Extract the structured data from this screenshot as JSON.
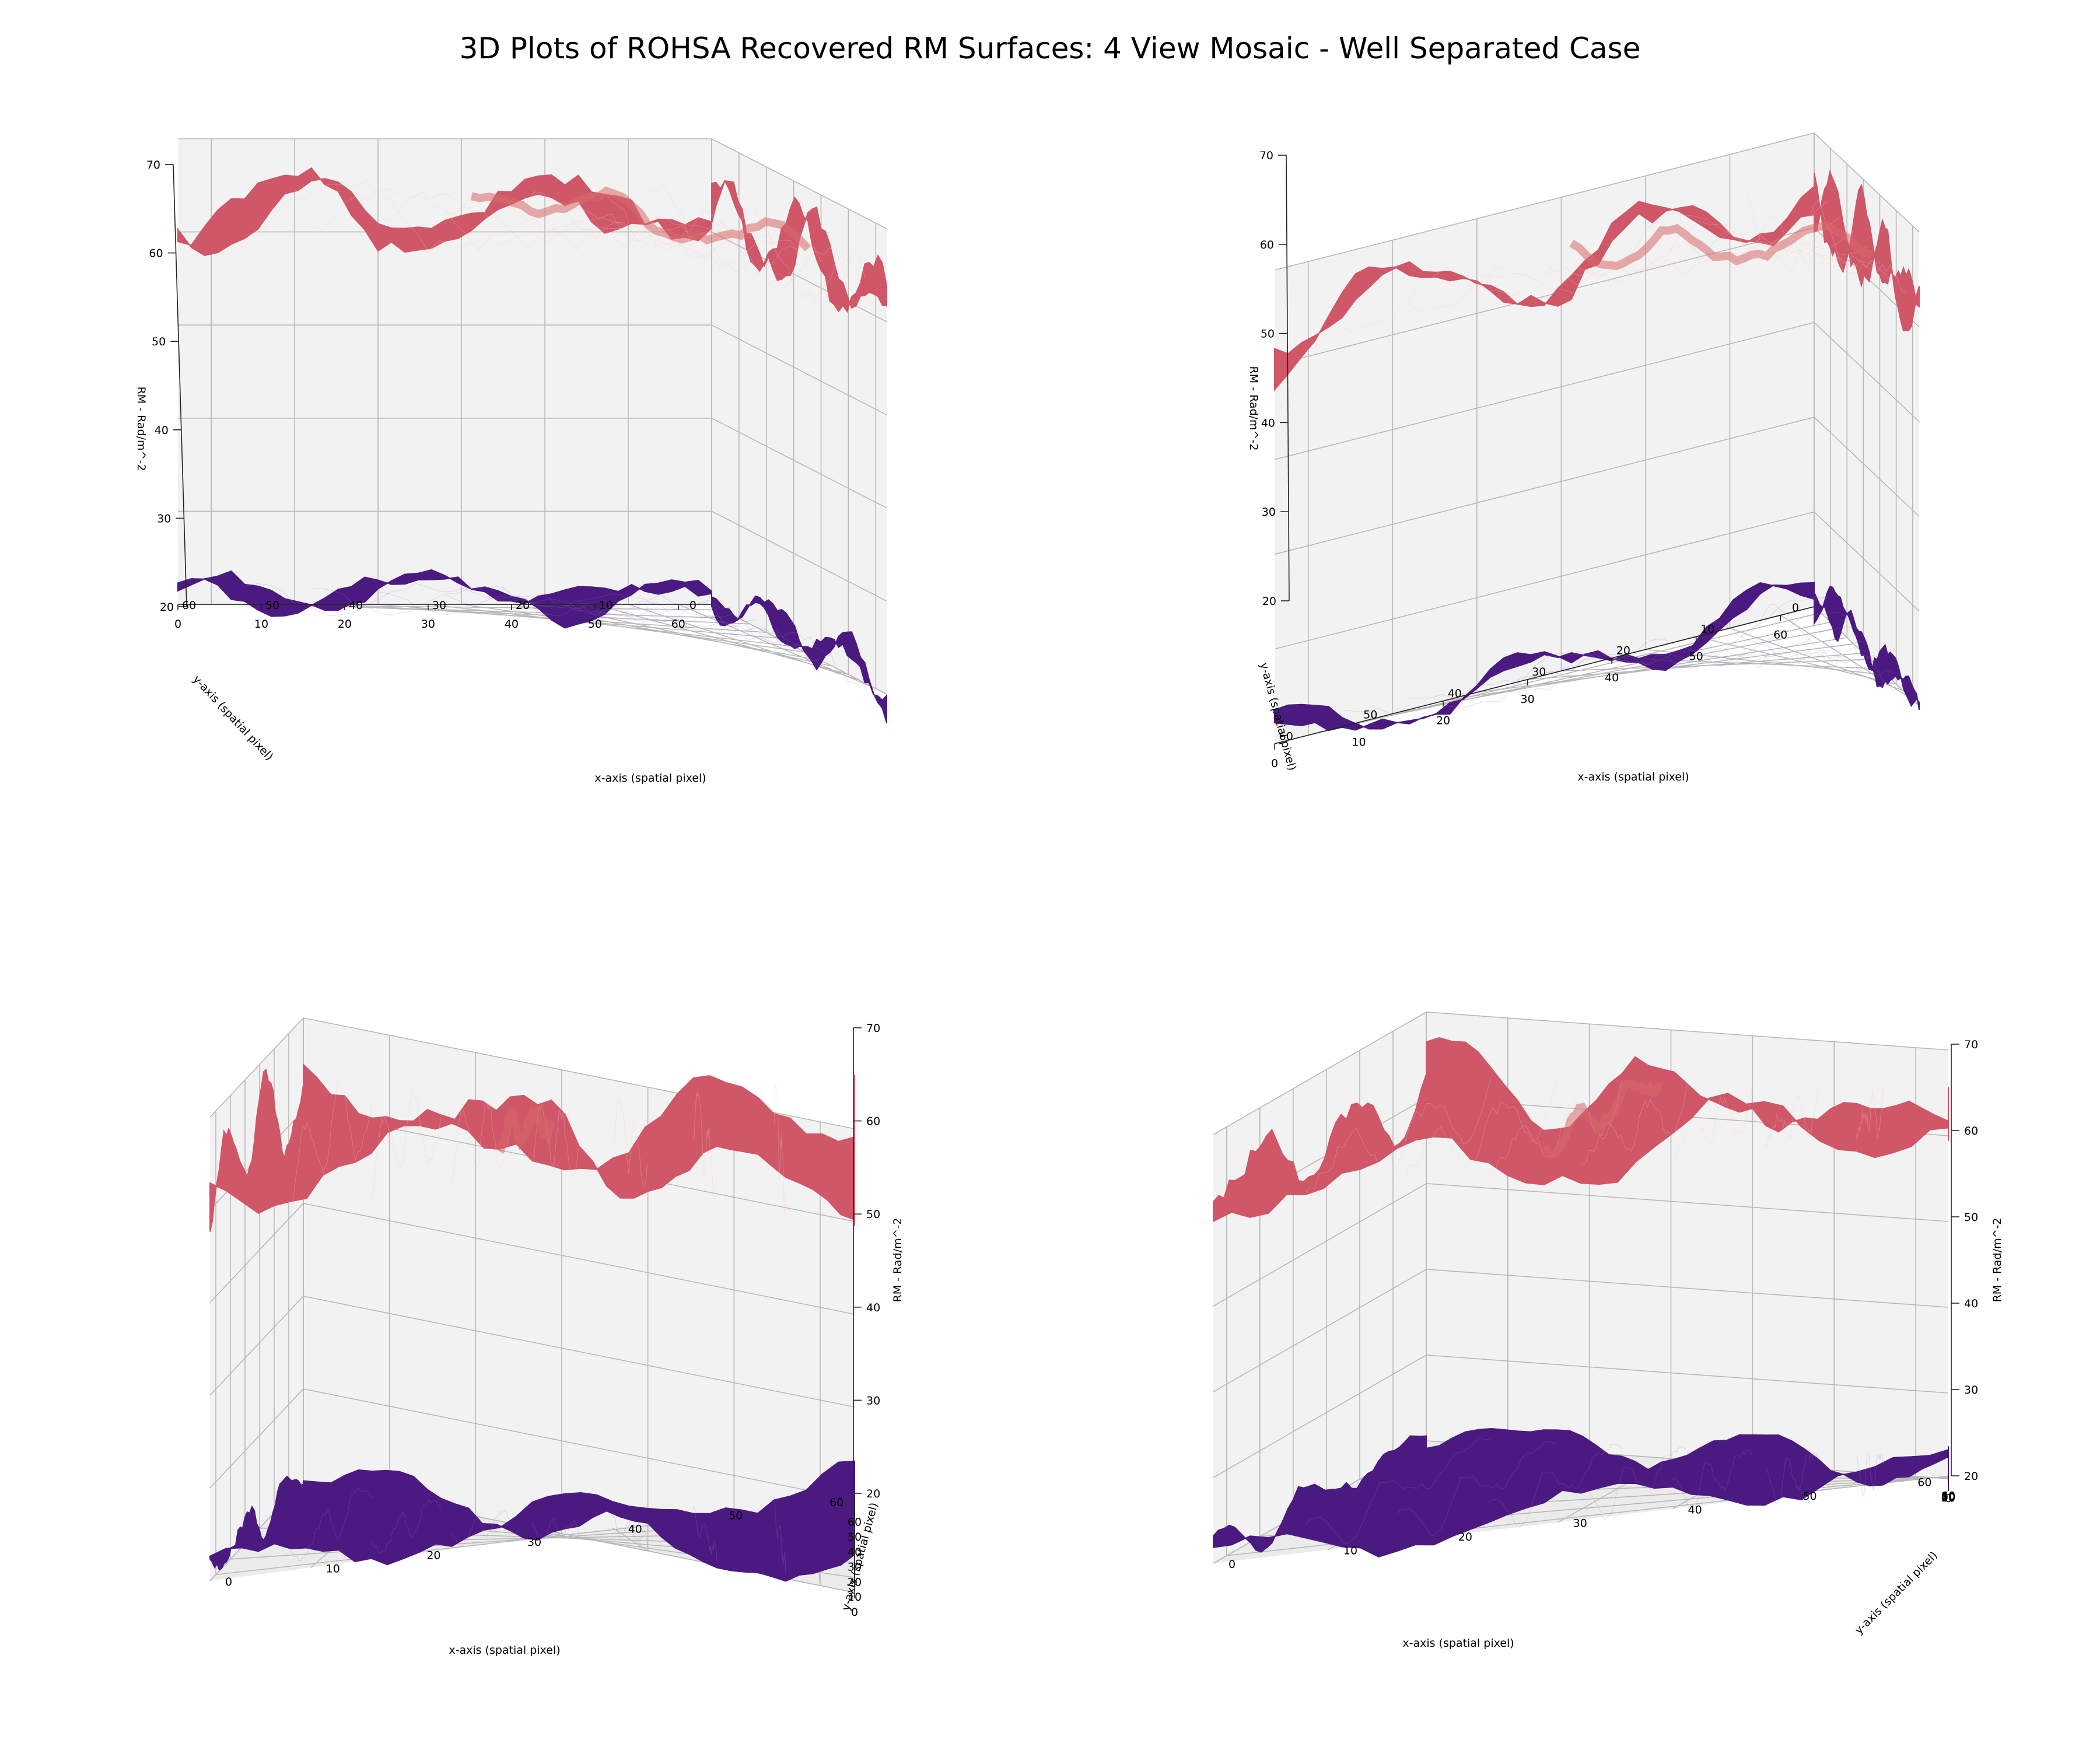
{
  "title": "3D Plots of ROHSA Recovered RM Surfaces: 4 View Mosaic - Well Separated Case",
  "colors": {
    "upper_surface": "#cf5768",
    "upper_surface_light": "#d96a6a",
    "upper_surface_dark": "#b84c6c",
    "lower_surface": "#4b1a80",
    "lower_surface_dark": "#3a1070",
    "pane": "#f2f2f2",
    "grid": "#b8b8b8"
  },
  "chart_data": [
    {
      "type": "surface3d",
      "view": "top-left",
      "xlabel": "x-axis (spatial pixel)",
      "ylabel": "y-axis (spatial pixel)",
      "zlabel": "RM - Rad/m^-2",
      "x_ticks": [
        "0",
        "10",
        "20",
        "30",
        "40",
        "50",
        "60"
      ],
      "y_ticks": [
        "0",
        "10",
        "20",
        "30",
        "40",
        "50",
        "60"
      ],
      "z_ticks": [
        "20",
        "30",
        "40",
        "50",
        "60",
        "70"
      ],
      "xlim": [
        0,
        64
      ],
      "ylim": [
        0,
        64
      ],
      "zlim": [
        20,
        70
      ],
      "series": [
        {
          "z_mean": 62.5,
          "z_range": [
            57,
            68
          ]
        },
        {
          "z_mean": 21,
          "z_range": [
            18,
            24
          ]
        }
      ]
    },
    {
      "type": "surface3d",
      "view": "top-right",
      "xlabel": "x-axis (spatial pixel)",
      "ylabel": "y-axis (spatial pixel)",
      "zlabel": "RM - Rad/m^-2",
      "x_ticks": [
        "0",
        "10",
        "20",
        "30",
        "40",
        "50",
        "60"
      ],
      "y_ticks": [
        "0",
        "10",
        "20",
        "30",
        "40",
        "50",
        "60"
      ],
      "z_ticks": [
        "20",
        "30",
        "40",
        "50",
        "60",
        "70"
      ],
      "xlim": [
        0,
        64
      ],
      "ylim": [
        0,
        64
      ],
      "zlim": [
        20,
        70
      ],
      "series": [
        {
          "z_mean": 62.5,
          "z_range": [
            57,
            68
          ]
        },
        {
          "z_mean": 21,
          "z_range": [
            18,
            24
          ]
        }
      ]
    },
    {
      "type": "surface3d",
      "view": "bottom-left",
      "xlabel": "x-axis (spatial pixel)",
      "ylabel": "y-axis (spatial pixel)",
      "zlabel": "RM - Rad/m^-2",
      "x_ticks": [
        "0",
        "10",
        "20",
        "30",
        "40",
        "50",
        "60"
      ],
      "y_ticks": [
        "0",
        "10",
        "20",
        "30",
        "40",
        "50",
        "60"
      ],
      "z_ticks": [
        "20",
        "30",
        "40",
        "50",
        "60",
        "70"
      ],
      "xlim": [
        0,
        64
      ],
      "ylim": [
        0,
        64
      ],
      "zlim": [
        20,
        70
      ],
      "series": [
        {
          "z_mean": 62.5,
          "z_range": [
            57,
            68
          ]
        },
        {
          "z_mean": 21,
          "z_range": [
            18,
            24
          ]
        }
      ]
    },
    {
      "type": "surface3d",
      "view": "bottom-right",
      "xlabel": "x-axis (spatial pixel)",
      "ylabel": "y-axis (spatial pixel)",
      "zlabel": "RM - Rad/m^-2",
      "x_ticks": [
        "0",
        "10",
        "20",
        "30",
        "40",
        "50",
        "60"
      ],
      "y_ticks": [
        "0",
        "10",
        "20",
        "30",
        "40",
        "50",
        "60"
      ],
      "z_ticks": [
        "20",
        "30",
        "40",
        "50",
        "60",
        "70"
      ],
      "xlim": [
        0,
        64
      ],
      "ylim": [
        0,
        64
      ],
      "zlim": [
        20,
        70
      ],
      "series": [
        {
          "z_mean": 62.5,
          "z_range": [
            57,
            68
          ]
        },
        {
          "z_mean": 21,
          "z_range": [
            18,
            24
          ]
        }
      ]
    }
  ]
}
